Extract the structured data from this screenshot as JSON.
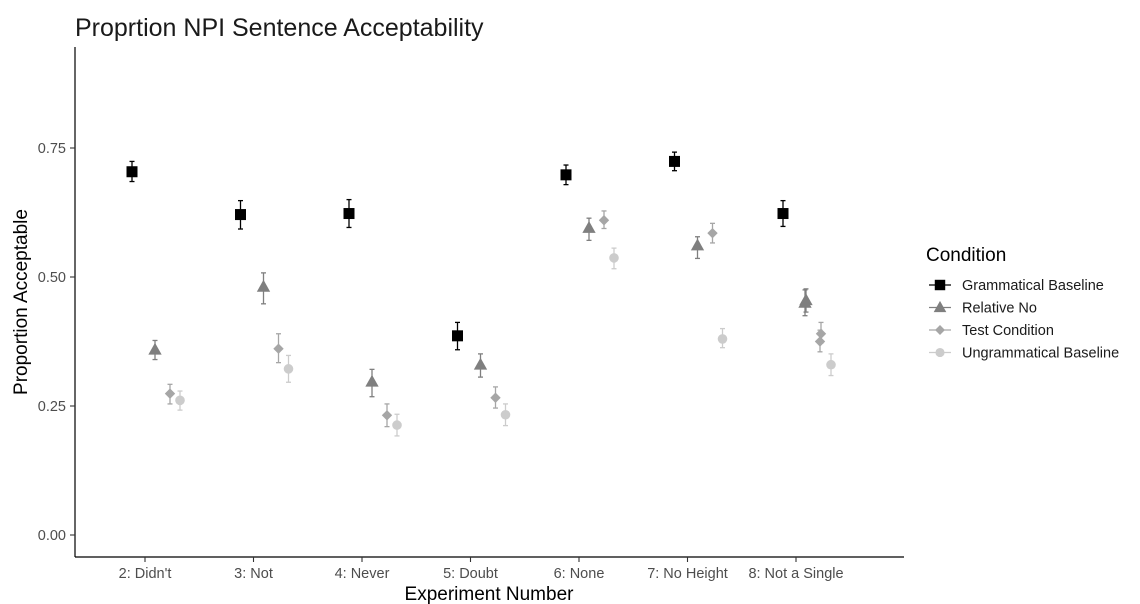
{
  "chart_data": {
    "type": "scatter",
    "title": "Proprtion NPI Sentence Acceptability",
    "xlabel": "Experiment Number",
    "ylabel": "Proportion Acceptable",
    "ylim": [
      0,
      0.93
    ],
    "yticks": [
      0.0,
      0.25,
      0.5,
      0.75
    ],
    "ytick_labels": [
      "0.00",
      "0.25",
      "0.50",
      "0.75"
    ],
    "categories": [
      "2: Didn't",
      "3: Not",
      "4: Never",
      "5: Doubt",
      "6: None",
      "7: No Height",
      "8: Not a Single"
    ],
    "grid": false,
    "legend": {
      "title": "Condition",
      "position": "right"
    },
    "series": [
      {
        "name": "Grammatical Baseline",
        "shape": "square",
        "color": "#000000",
        "values": [
          0.704,
          0.621,
          0.623,
          0.386,
          0.698,
          0.724,
          0.623
        ],
        "err_low": [
          0.685,
          0.593,
          0.596,
          0.359,
          0.679,
          0.706,
          0.598
        ],
        "err_high": [
          0.724,
          0.648,
          0.65,
          0.412,
          0.717,
          0.742,
          0.648
        ]
      },
      {
        "name": "Relative No",
        "shape": "triangle",
        "color": "#7f7f7f",
        "values": [
          0.359,
          0.481,
          0.297,
          0.33,
          0.595,
          0.561,
          0.455
        ],
        "err_low": [
          0.34,
          0.448,
          0.268,
          0.306,
          0.571,
          0.536,
          0.432
        ],
        "err_high": [
          0.377,
          0.508,
          0.321,
          0.351,
          0.614,
          0.578,
          0.477
        ]
      },
      {
        "name": "Test Condition",
        "shape": "diamond",
        "color": "#a6a6a6",
        "values": [
          0.274,
          0.361,
          0.232,
          0.266,
          0.61,
          0.585,
          0.39
        ],
        "err_low": [
          0.254,
          0.334,
          0.21,
          0.246,
          0.594,
          0.566,
          0.372
        ],
        "err_high": [
          0.292,
          0.39,
          0.254,
          0.287,
          0.628,
          0.604,
          0.412
        ]
      },
      {
        "name": "Ungrammatical Baseline",
        "shape": "circle",
        "color": "#cccccc",
        "values": [
          0.261,
          0.322,
          0.213,
          0.233,
          0.537,
          0.38,
          0.33
        ],
        "err_low": [
          0.242,
          0.296,
          0.192,
          0.212,
          0.516,
          0.363,
          0.309
        ],
        "err_high": [
          0.279,
          0.348,
          0.234,
          0.254,
          0.556,
          0.4,
          0.351
        ]
      }
    ],
    "extra_points": [
      {
        "series": "Relative No",
        "category": "8: Not a Single",
        "value": 0.45,
        "err_low": 0.425,
        "err_high": 0.475
      },
      {
        "series": "Test Condition",
        "category": "8: Not a Single",
        "value": 0.375,
        "err_low": 0.355,
        "err_high": 0.397
      }
    ]
  }
}
